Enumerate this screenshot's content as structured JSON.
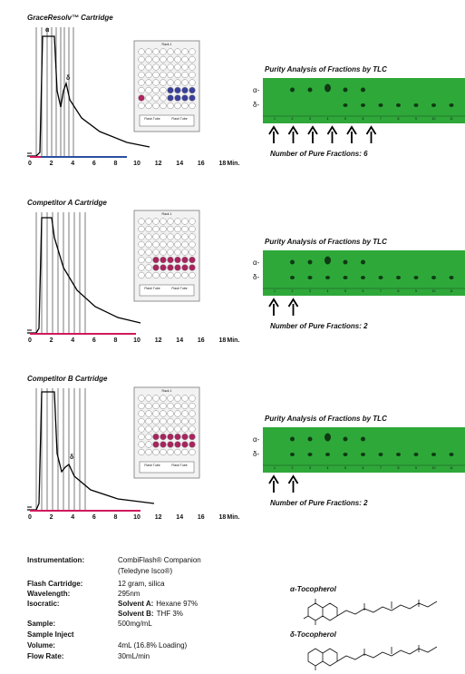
{
  "panels": [
    {
      "title": "GraceResolv™ Cartridge",
      "peak_labels": [
        "α",
        "δ"
      ],
      "x_ticks": [
        0,
        2,
        4,
        6,
        8,
        10,
        12,
        14,
        16,
        18
      ],
      "x_unit": "Min.",
      "rack": {
        "title": "Rack 1",
        "headers": [
          "Flash Tube",
          "Flash Tube"
        ]
      },
      "tlc": {
        "title": "Purity Analysis of Fractions by TLC",
        "spot_labels": [
          "α-",
          "δ-"
        ],
        "lanes": [
          1,
          2,
          3,
          4,
          5,
          6,
          7,
          8,
          9,
          10,
          11
        ],
        "result": "Number of Pure Fractions: 6"
      }
    },
    {
      "title": "Competitor A Cartridge",
      "peak_labels": [],
      "x_ticks": [
        0,
        2,
        4,
        6,
        8,
        10,
        12,
        14,
        16,
        18
      ],
      "x_unit": "Min.",
      "rack": {
        "title": "Rack 1",
        "headers": [
          "Flash Tube",
          "Flash Tube"
        ]
      },
      "tlc": {
        "title": "Purity Analysis of Fractions by TLC",
        "spot_labels": [
          "α-",
          "δ-"
        ],
        "lanes": [
          1,
          2,
          3,
          4,
          5,
          6,
          7,
          8,
          9,
          10,
          11
        ],
        "result": "Number of Pure Fractions: 2"
      }
    },
    {
      "title": "Competitor B Cartridge",
      "peak_labels": [
        "δ"
      ],
      "x_ticks": [
        0,
        2,
        4,
        6,
        8,
        10,
        12,
        14,
        16,
        18
      ],
      "x_unit": "Min.",
      "rack": {
        "title": "Rack 1",
        "headers": [
          "Flash Tube",
          "Flash Tube"
        ]
      },
      "tlc": {
        "title": "Purity Analysis of Fractions by TLC",
        "spot_labels": [
          "α-",
          "δ-"
        ],
        "lanes": [
          1,
          2,
          3,
          4,
          5,
          6,
          7,
          8,
          9,
          10,
          11
        ],
        "result": "Number of Pure Fractions: 2"
      }
    }
  ],
  "conditions": [
    {
      "label": "Instrumentation:",
      "lines": [
        "CombiFlash® Companion",
        "(Teledyne Isco®)"
      ]
    },
    {
      "label": "Flash Cartridge:",
      "lines": [
        "12 gram, silica"
      ]
    },
    {
      "label": "Wavelength:",
      "lines": [
        "295nm"
      ]
    },
    {
      "label": "Isocratic:",
      "lines": [
        {
          "bold": "Solvent A:",
          "text": "Hexane 97%"
        },
        {
          "bold": "Solvent B:",
          "text": "THF 3%"
        }
      ]
    },
    {
      "label": "Sample:",
      "lines": [
        "500mg/mL"
      ]
    },
    {
      "label": "Sample Inject",
      "lines": []
    },
    {
      "label": "Volume:",
      "lines": [
        "4mL (16.8% Loading)"
      ]
    },
    {
      "label": "Flow Rate:",
      "lines": [
        "30mL/min"
      ]
    }
  ],
  "structures": [
    {
      "name": "α-Tocopherol"
    },
    {
      "name": "δ-Tocopherol"
    }
  ]
}
